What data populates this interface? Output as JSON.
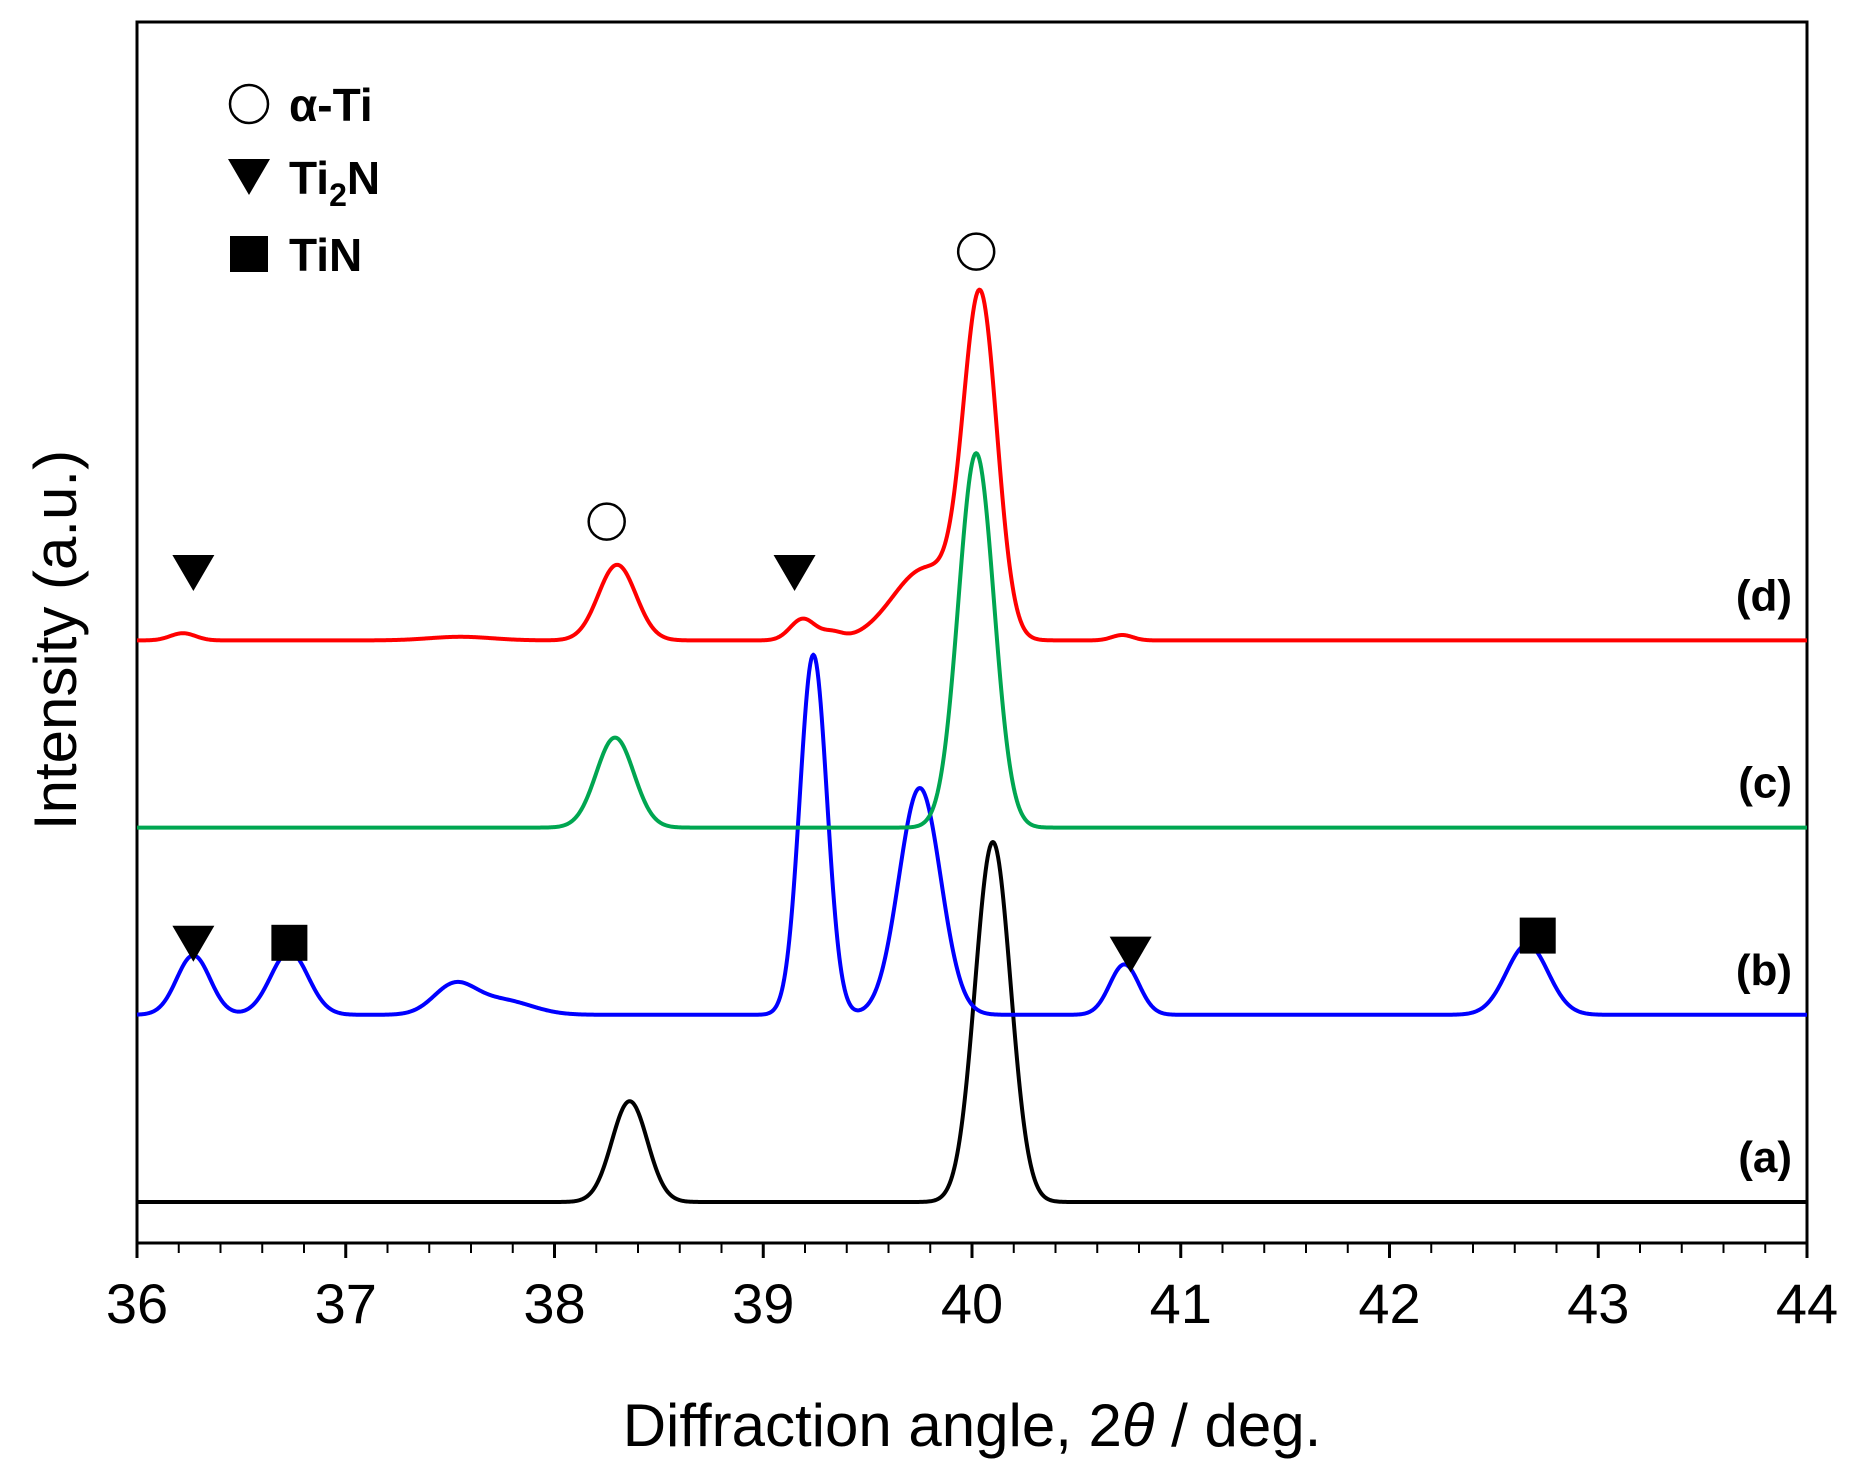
{
  "chart_data": {
    "type": "line",
    "title": "",
    "xlabel_prefix": "Diffraction angle, 2",
    "xlabel_symbol": "θ",
    "xlabel_suffix": " / deg.",
    "ylabel": "Intensity (a.u.)",
    "xlim": [
      36,
      44
    ],
    "ylim": [
      0,
      100
    ],
    "x_ticks": [
      "36",
      "37",
      "38",
      "39",
      "40",
      "41",
      "42",
      "43",
      "44"
    ],
    "legend": {
      "position": "top-left",
      "entries": [
        {
          "marker": "circle",
          "label": "α-Ti"
        },
        {
          "marker": "triangle-down",
          "label_main": "Ti",
          "label_sub": "2",
          "label_tail": "N"
        },
        {
          "marker": "square",
          "label": "TiN"
        }
      ]
    },
    "series": [
      {
        "name": "(a)",
        "color": "#000000",
        "baseline": 0,
        "peaks": [
          {
            "x": 38.36,
            "height": 28,
            "width": 0.085
          },
          {
            "x": 40.1,
            "height": 100,
            "width": 0.085
          }
        ],
        "markers": []
      },
      {
        "name": "(b)",
        "color": "#0000ff",
        "baseline": 52,
        "peaks": [
          {
            "x": 36.27,
            "height": 16.5,
            "width": 0.08
          },
          {
            "x": 36.73,
            "height": 17.5,
            "width": 0.09
          },
          {
            "x": 37.52,
            "height": 8,
            "width": 0.1
          },
          {
            "x": 37.75,
            "height": 4,
            "width": 0.14
          },
          {
            "x": 39.24,
            "height": 100,
            "width": 0.065
          },
          {
            "x": 39.75,
            "height": 63,
            "width": 0.1
          },
          {
            "x": 40.73,
            "height": 14,
            "width": 0.07
          },
          {
            "x": 42.66,
            "height": 19.5,
            "width": 0.1
          }
        ],
        "markers": [
          {
            "shape": "triangle-down",
            "x": 36.27,
            "y": 72
          },
          {
            "shape": "square",
            "x": 36.73,
            "y": 72
          },
          {
            "shape": "triangle-down",
            "x": 40.76,
            "y": 69
          },
          {
            "shape": "square",
            "x": 42.71,
            "y": 74
          }
        ]
      },
      {
        "name": "(c)",
        "color": "#00a651",
        "baseline": 104,
        "peaks": [
          {
            "x": 38.29,
            "height": 25,
            "width": 0.09
          },
          {
            "x": 40.02,
            "height": 104,
            "width": 0.085
          }
        ],
        "markers": []
      },
      {
        "name": "(d)",
        "color": "#ff0000",
        "baseline": 156,
        "peaks": [
          {
            "x": 36.22,
            "height": 2,
            "width": 0.06
          },
          {
            "x": 37.55,
            "height": 1,
            "width": 0.15
          },
          {
            "x": 38.3,
            "height": 21,
            "width": 0.09
          },
          {
            "x": 39.19,
            "height": 6,
            "width": 0.06
          },
          {
            "x": 39.33,
            "height": 2,
            "width": 0.05
          },
          {
            "x": 39.78,
            "height": 20,
            "width": 0.16
          },
          {
            "x": 40.04,
            "height": 92,
            "width": 0.08
          },
          {
            "x": 40.72,
            "height": 1.5,
            "width": 0.05
          }
        ],
        "markers": [
          {
            "shape": "triangle-down",
            "x": 36.27,
            "y": 175
          },
          {
            "shape": "circle",
            "x": 38.25,
            "y": 189
          },
          {
            "shape": "triangle-down",
            "x": 39.15,
            "y": 175
          },
          {
            "shape": "circle",
            "x": 40.02,
            "y": 264
          }
        ]
      }
    ]
  }
}
